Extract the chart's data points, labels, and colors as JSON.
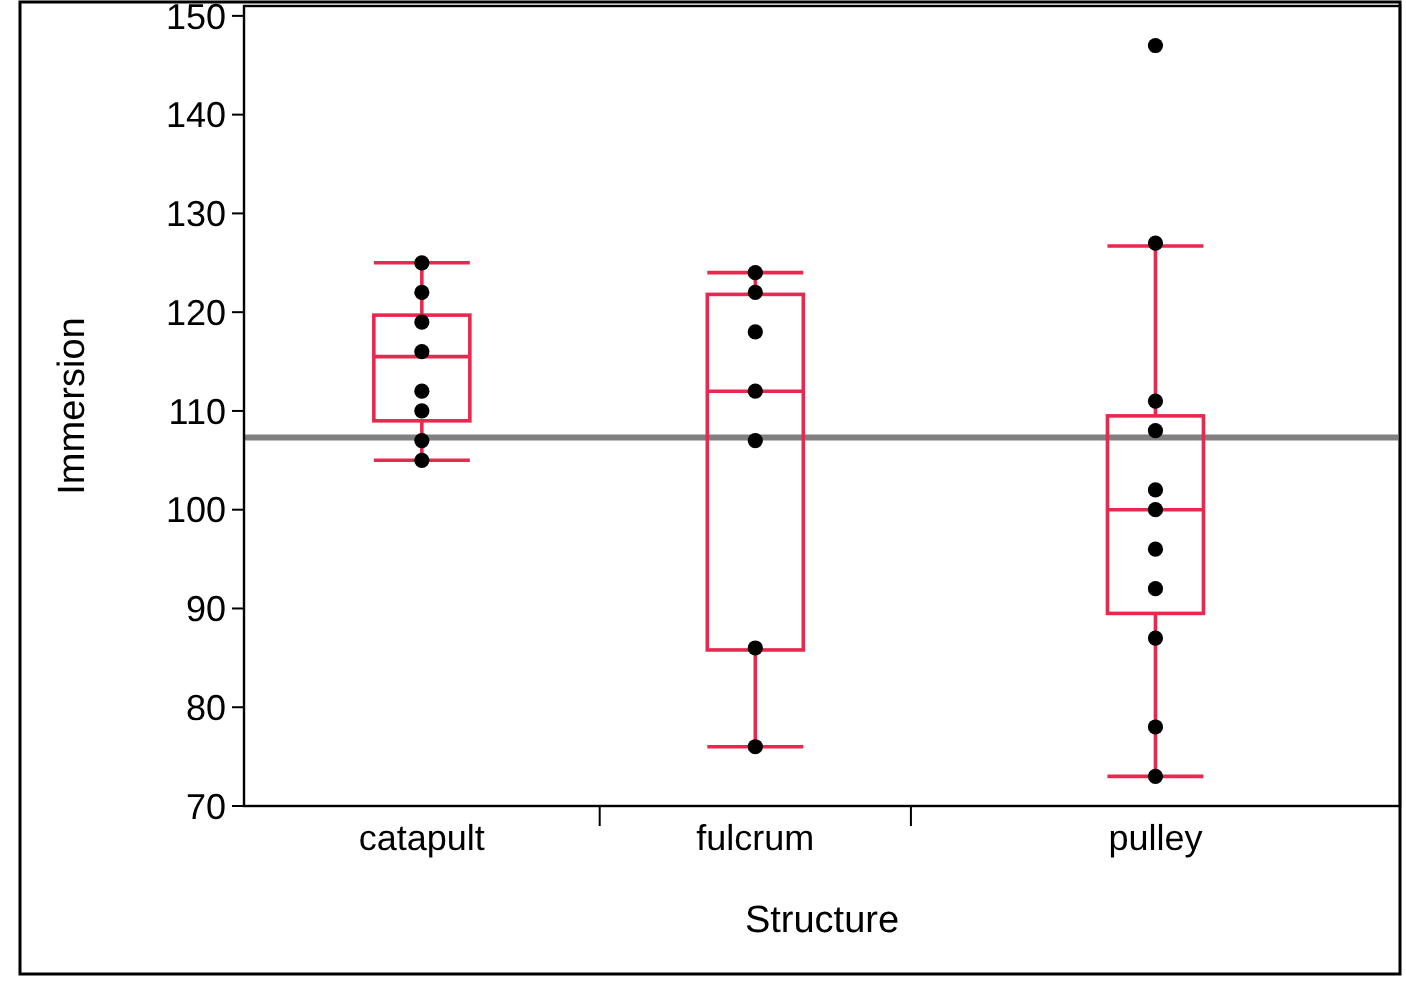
{
  "chart_data": {
    "type": "box",
    "xlabel": "Structure",
    "ylabel": "Immersion",
    "categories": [
      "catapult",
      "fulcrum",
      "pulley"
    ],
    "ylim": [
      70,
      151
    ],
    "yticks": [
      70,
      80,
      90,
      100,
      110,
      120,
      130,
      140,
      150
    ],
    "grid": false,
    "boxes": [
      {
        "low": 105,
        "q1": 109,
        "median": 115.5,
        "q3": 119.7,
        "high": 125
      },
      {
        "low": 76,
        "q1": 85.8,
        "median": 112,
        "q3": 121.8,
        "high": 124
      },
      {
        "low": 73,
        "q1": 89.5,
        "median": 100,
        "q3": 109.5,
        "high": 126.7
      }
    ],
    "color": "#e8294f",
    "ref_lines": [
      {
        "axis": "y",
        "value": 107.3,
        "color": "#808080"
      }
    ],
    "series": [
      {
        "type": "scatter",
        "color": "#000000",
        "marker": "circle",
        "x": [
          "catapult",
          "catapult",
          "catapult",
          "catapult",
          "catapult",
          "catapult",
          "catapult",
          "catapult",
          "fulcrum",
          "fulcrum",
          "fulcrum",
          "fulcrum",
          "fulcrum",
          "fulcrum",
          "fulcrum",
          "pulley",
          "pulley",
          "pulley",
          "pulley",
          "pulley",
          "pulley",
          "pulley",
          "pulley",
          "pulley",
          "pulley",
          "pulley"
        ],
        "values": [
          125,
          122,
          119,
          116,
          112,
          110,
          107,
          105,
          124,
          122,
          118,
          112,
          107,
          86,
          76,
          147,
          127,
          111,
          108,
          102,
          100,
          96,
          92,
          87,
          78,
          73
        ]
      }
    ]
  }
}
